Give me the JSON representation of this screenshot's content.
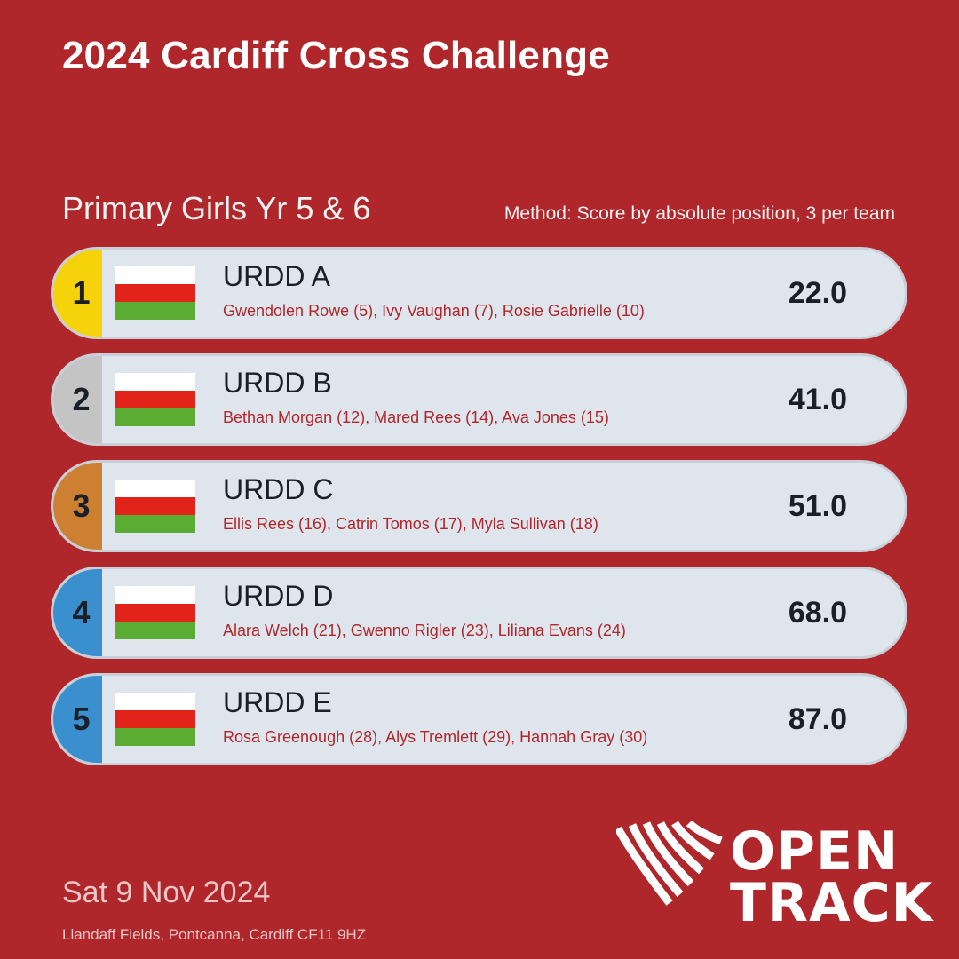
{
  "title": "2024 Cardiff Cross Challenge",
  "subtitle": "Primary Girls Yr 5 & 6",
  "method": "Method: Score by absolute position, 3 per team",
  "results": [
    {
      "rank": "1",
      "team": "URDD A",
      "members": "Gwendolen Rowe (5), Ivy Vaughan (7), Rosie Gabrielle (10)",
      "score": "22.0",
      "rank_color": "#f5d20a"
    },
    {
      "rank": "2",
      "team": "URDD B",
      "members": "Bethan Morgan (12), Mared Rees (14), Ava Jones (15)",
      "score": "41.0",
      "rank_color": "#c4c4c4"
    },
    {
      "rank": "3",
      "team": "URDD C",
      "members": "Ellis Rees (16), Catrin Tomos (17), Myla Sullivan (18)",
      "score": "51.0",
      "rank_color": "#cd8032"
    },
    {
      "rank": "4",
      "team": "URDD D",
      "members": "Alara Welch (21), Gwenno Rigler (23), Liliana Evans (24)",
      "score": "68.0",
      "rank_color": "#3a8fcf"
    },
    {
      "rank": "5",
      "team": "URDD E",
      "members": "Rosa Greenough (28), Alys Tremlett (29), Hannah Gray (30)",
      "score": "87.0",
      "rank_color": "#3a8fcf"
    }
  ],
  "flag_icon": "wales-flag-icon",
  "date": "Sat 9 Nov 2024",
  "venue": "Llandaff Fields, Pontcanna, Cardiff CF11 9HZ",
  "logo": {
    "line1": "OPEN",
    "line2": "TRACK"
  },
  "colors": {
    "background": "#b0272b",
    "row": "#dfe5ec",
    "member_text": "#b0272b"
  }
}
